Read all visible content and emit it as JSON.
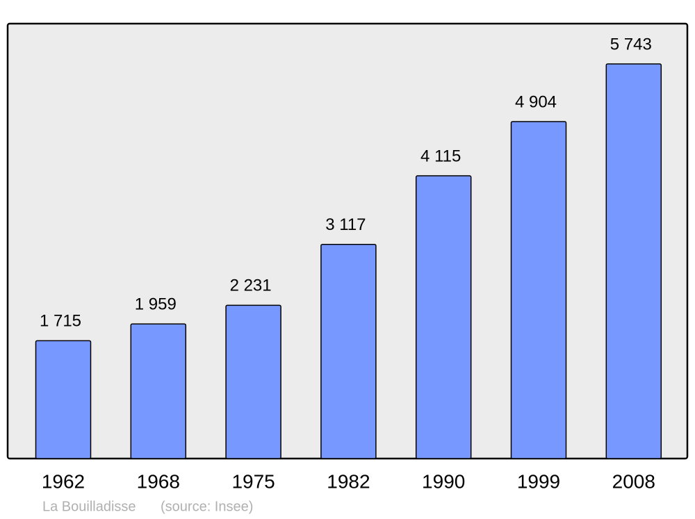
{
  "chart_data": {
    "type": "bar",
    "categories": [
      "1962",
      "1968",
      "1975",
      "1982",
      "1990",
      "1999",
      "2008"
    ],
    "values": [
      1715,
      1959,
      2231,
      3117,
      4115,
      4904,
      5743
    ],
    "value_labels": [
      "1 715",
      "1 959",
      "2 231",
      "3 117",
      "4 115",
      "4 904",
      "5 743"
    ],
    "color": "#7799ff",
    "caption": "La Bouilladisse",
    "source": "(source: Insee)"
  }
}
